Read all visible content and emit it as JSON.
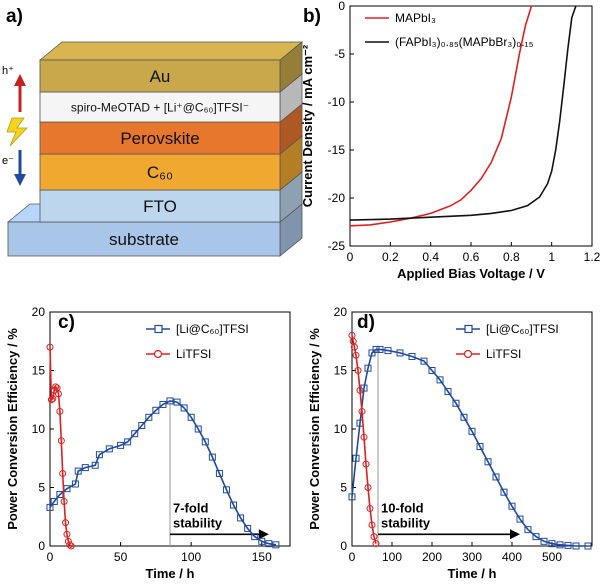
{
  "panels": {
    "a": "a)",
    "b": "b)",
    "c": "c)",
    "d": "d)"
  },
  "stack": {
    "layers": [
      "Au",
      "spiro-MeOTAD + [Li⁺@C₆₀]TFSI⁻",
      "Perovskite",
      "C₆₀",
      "FTO",
      "substrate"
    ],
    "hole_label": "h⁺",
    "electron_label": "e⁻",
    "colors": {
      "au": "#c8a84a",
      "spiro": "#f5f5f5",
      "perovskite": "#e8772e",
      "c60": "#f0a830",
      "fto": "#bcd6ee",
      "substrate": "#a9c6e8"
    }
  },
  "chart_data": [
    {
      "id": "b",
      "type": "line",
      "xlabel": "Applied Bias Voltage / V",
      "ylabel": "Current Density / mA cm⁻²",
      "xlim": [
        0,
        1.2
      ],
      "ylim": [
        -25,
        0
      ],
      "xticks": [
        0,
        0.2,
        0.4,
        0.6,
        0.8,
        1,
        1.2
      ],
      "xtick_labels": [
        "0",
        "0.2",
        "0.4",
        "0.6",
        "0.8",
        "1",
        "1.2"
      ],
      "yticks": [
        0,
        -5,
        -10,
        -15,
        -20,
        -25
      ],
      "ytick_labels": [
        "0",
        "-5",
        "-10",
        "-15",
        "-20",
        "-25"
      ],
      "legend_position": "top-right",
      "series": [
        {
          "name": "MAPbI₃",
          "color": "#e02020",
          "x": [
            0,
            0.1,
            0.2,
            0.3,
            0.4,
            0.45,
            0.5,
            0.55,
            0.6,
            0.65,
            0.7,
            0.75,
            0.8,
            0.84,
            0.87,
            0.9
          ],
          "y": [
            -22.9,
            -22.8,
            -22.5,
            -22.1,
            -21.6,
            -21.2,
            -20.8,
            -20.2,
            -19.2,
            -18.0,
            -16.3,
            -13.8,
            -9.5,
            -5.0,
            -2.0,
            0
          ]
        },
        {
          "name": "(FAPbI₃)₀.₈₅(MAPbBr₃)₀.₁₅",
          "color": "#111111",
          "x": [
            0,
            0.2,
            0.4,
            0.6,
            0.7,
            0.8,
            0.88,
            0.94,
            0.98,
            1.0,
            1.02,
            1.04,
            1.06,
            1.08,
            1.1,
            1.12
          ],
          "y": [
            -22.3,
            -22.2,
            -22.0,
            -21.8,
            -21.6,
            -21.3,
            -20.8,
            -19.9,
            -18.5,
            -17.2,
            -15.0,
            -12.0,
            -8.3,
            -4.5,
            -1.2,
            0
          ]
        }
      ]
    },
    {
      "id": "c",
      "type": "line",
      "xlabel": "Time / h",
      "ylabel": "Power Conversion Efficiency / %",
      "xlim": [
        0,
        170
      ],
      "ylim": [
        0,
        20
      ],
      "xticks": [
        0,
        50,
        100,
        150
      ],
      "xtick_labels": [
        "0",
        "50",
        "100",
        "150"
      ],
      "yticks": [
        0,
        5,
        10,
        15,
        20
      ],
      "ytick_labels": [
        "0",
        "5",
        "10",
        "15",
        "20"
      ],
      "legend_position": "top-right",
      "annotation": {
        "text": [
          "7-fold",
          "stability"
        ],
        "arrow_from": 85,
        "arrow_to": 155,
        "y": 1.0,
        "vline_x": 85
      },
      "series": [
        {
          "name": "[Li@C₆₀]TFSI",
          "color": "#1f4aa0",
          "marker": "square",
          "x": [
            0,
            3,
            7,
            12,
            18,
            20,
            25,
            32,
            35,
            42,
            50,
            55,
            60,
            65,
            70,
            75,
            80,
            85,
            90,
            95,
            100,
            105,
            110,
            115,
            120,
            125,
            130,
            135,
            140,
            145,
            150,
            155,
            160
          ],
          "y": [
            3.3,
            3.8,
            4.4,
            4.9,
            5.3,
            6.4,
            6.7,
            6.9,
            7.8,
            8.3,
            8.6,
            8.9,
            9.6,
            10.3,
            11.0,
            11.6,
            12.1,
            12.4,
            12.3,
            11.8,
            11.0,
            10.0,
            8.9,
            7.6,
            6.2,
            4.8,
            3.5,
            2.4,
            1.5,
            0.8,
            0.4,
            0.2,
            0.1
          ]
        },
        {
          "name": "LiTFSI",
          "color": "#e02020",
          "marker": "circle",
          "x": [
            0,
            1,
            2,
            3,
            4,
            5,
            6,
            7,
            8,
            9,
            10,
            11,
            12,
            13,
            14,
            15
          ],
          "y": [
            17.0,
            12.5,
            12.6,
            13.3,
            13.6,
            13.5,
            13.0,
            11.5,
            9.0,
            6.2,
            3.8,
            2.0,
            1.0,
            0.4,
            0.1,
            0
          ]
        }
      ]
    },
    {
      "id": "d",
      "type": "line",
      "xlabel": "Time / h",
      "ylabel": "Power Conversion Efficiency / %",
      "xlim": [
        0,
        600
      ],
      "ylim": [
        0,
        20
      ],
      "xticks": [
        0,
        100,
        200,
        300,
        400,
        500
      ],
      "xtick_labels": [
        "0",
        "100",
        "200",
        "300",
        "400",
        "500"
      ],
      "yticks": [
        0,
        5,
        10,
        15,
        20
      ],
      "ytick_labels": [
        "0",
        "5",
        "10",
        "15",
        "20"
      ],
      "legend_position": "top-right",
      "annotation": {
        "text": [
          "10-fold",
          "stability"
        ],
        "arrow_from": 65,
        "arrow_to": 420,
        "y": 1.0,
        "vline_x": 65
      },
      "series": [
        {
          "name": "[Li@C₆₀]TFSI",
          "color": "#1f4aa0",
          "marker": "square",
          "x": [
            0,
            10,
            20,
            30,
            40,
            50,
            60,
            70,
            90,
            120,
            150,
            180,
            200,
            220,
            240,
            260,
            280,
            300,
            320,
            340,
            360,
            380,
            400,
            420,
            440,
            460,
            480,
            500,
            520,
            540,
            560,
            590
          ],
          "y": [
            4.2,
            7.5,
            10.5,
            13.5,
            15.2,
            16.5,
            16.8,
            16.8,
            16.7,
            16.5,
            16.2,
            15.8,
            15.0,
            14.2,
            13.2,
            12.2,
            11.0,
            9.8,
            8.5,
            7.2,
            5.9,
            4.6,
            3.4,
            2.3,
            1.4,
            0.8,
            0.4,
            0.2,
            0.1,
            0.05,
            0,
            0
          ]
        },
        {
          "name": "LiTFSI",
          "color": "#e02020",
          "marker": "circle",
          "x": [
            0,
            3,
            6,
            10,
            15,
            20,
            25,
            30,
            35,
            40,
            45,
            50,
            55,
            60
          ],
          "y": [
            18.0,
            17.5,
            17.0,
            16.3,
            15.0,
            13.3,
            11.5,
            9.3,
            7.0,
            5.0,
            3.2,
            1.8,
            0.8,
            0.2
          ]
        }
      ]
    }
  ]
}
